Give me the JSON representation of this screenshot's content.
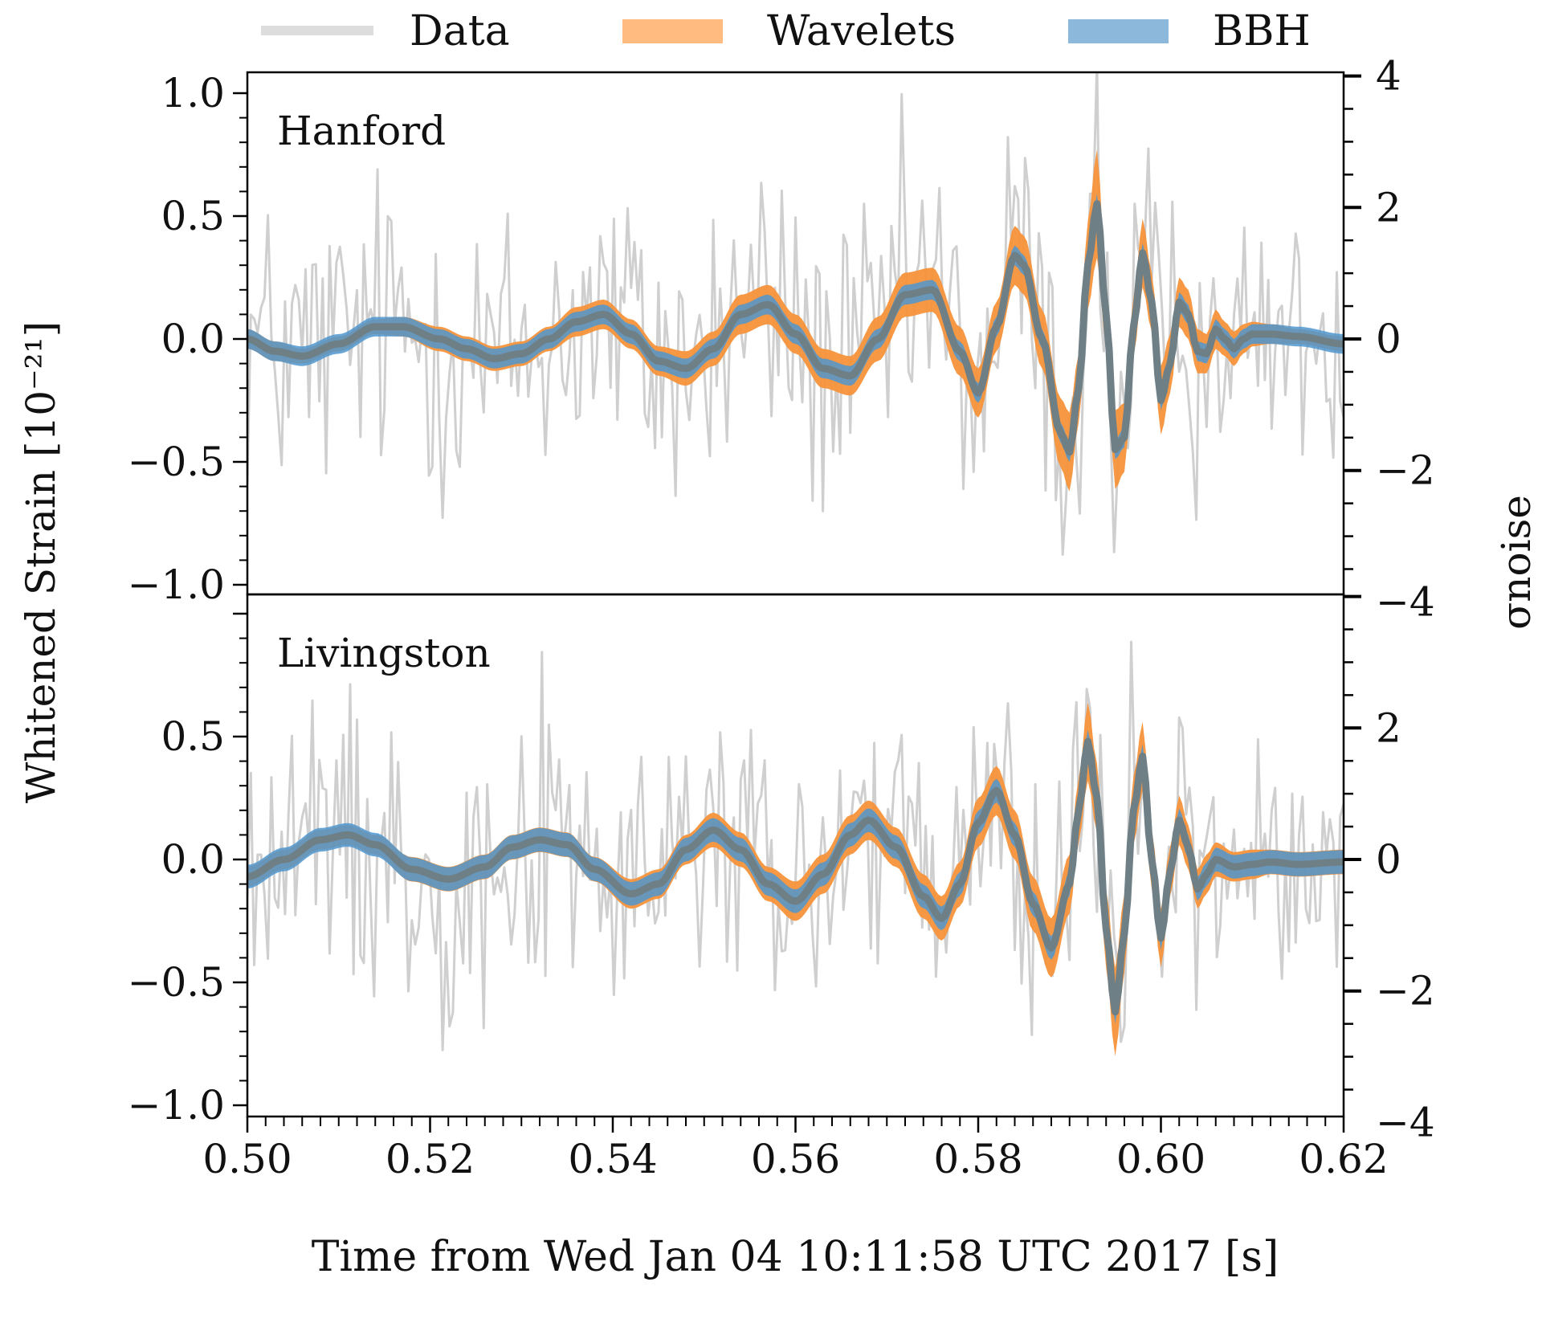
{
  "legend": {
    "items": [
      {
        "label": "Data",
        "color": "#cccccc"
      },
      {
        "label": "Wavelets",
        "color": "#ffbb80"
      },
      {
        "label": "BBH",
        "color": "#8cb8dc"
      }
    ]
  },
  "colors": {
    "data": "#cfcfcf",
    "wavelets": "#f7923a",
    "bbh": "#4f97cf",
    "median": "#6e7f86"
  },
  "chart_data": {
    "type": "line",
    "xlabel": "Time from Wed Jan 04 10:11:58 UTC 2017 [s]",
    "ylabel": "Whitened Strain [10⁻²¹]",
    "y2label": "σnoise",
    "xlim": [
      0.5,
      0.62
    ],
    "x_ticks": [
      "0.50",
      "0.52",
      "0.54",
      "0.56",
      "0.58",
      "0.60",
      "0.62"
    ],
    "series_names": [
      "Data",
      "Wavelets",
      "BBH"
    ],
    "panels": [
      {
        "label": "Hanford",
        "ylim": [
          -1.07,
          1.07
        ],
        "y2lim": [
          -4,
          4
        ],
        "y_ticks": [
          "1.0",
          "0.5",
          "0.0",
          "−0.5",
          "−1.0"
        ],
        "y2_ticks": [
          "4",
          "2",
          "0",
          "−2",
          "−4"
        ],
        "waveform_t": [
          0.5,
          0.503,
          0.506,
          0.51,
          0.514,
          0.517,
          0.521,
          0.524,
          0.527,
          0.53,
          0.533,
          0.536,
          0.539,
          0.542,
          0.545,
          0.548,
          0.551,
          0.554,
          0.557,
          0.56,
          0.563,
          0.566,
          0.569,
          0.572,
          0.575,
          0.578,
          0.58,
          0.582,
          0.584,
          0.585,
          0.587,
          0.589,
          0.59,
          0.591,
          0.592,
          0.593,
          0.594,
          0.595,
          0.596,
          0.597,
          0.598,
          0.599,
          0.6,
          0.601,
          0.602,
          0.603,
          0.604,
          0.605,
          0.606,
          0.607,
          0.608,
          0.609,
          0.61,
          0.612,
          0.615,
          0.62
        ],
        "waveform_median": [
          0.0,
          -0.05,
          -0.07,
          -0.02,
          0.05,
          0.05,
          0.0,
          -0.04,
          -0.08,
          -0.06,
          0.0,
          0.07,
          0.1,
          0.02,
          -0.09,
          -0.12,
          -0.04,
          0.1,
          0.14,
          0.02,
          -0.12,
          -0.15,
          0.0,
          0.18,
          0.2,
          -0.05,
          -0.22,
          0.05,
          0.34,
          0.3,
          0.0,
          -0.38,
          -0.46,
          -0.2,
          0.3,
          0.55,
          0.1,
          -0.45,
          -0.4,
          0.05,
          0.35,
          0.15,
          -0.25,
          -0.1,
          0.15,
          0.1,
          -0.05,
          -0.06,
          0.04,
          0.0,
          -0.04,
          0.0,
          0.02,
          0.02,
          0.01,
          -0.02
        ],
        "bbh_halfwidth": 0.025,
        "wavelet_halfwidth": [
          0.04,
          0.04,
          0.03,
          0.03,
          0.03,
          0.04,
          0.05,
          0.05,
          0.05,
          0.05,
          0.05,
          0.06,
          0.06,
          0.06,
          0.06,
          0.07,
          0.07,
          0.08,
          0.08,
          0.08,
          0.08,
          0.08,
          0.09,
          0.09,
          0.09,
          0.1,
          0.1,
          0.1,
          0.12,
          0.12,
          0.12,
          0.14,
          0.16,
          0.14,
          0.18,
          0.22,
          0.14,
          0.16,
          0.14,
          0.12,
          0.14,
          0.12,
          0.14,
          0.12,
          0.1,
          0.1,
          0.09,
          0.08,
          0.08,
          0.07,
          0.07,
          0.06,
          0.05,
          0.04,
          0.03,
          0.03
        ],
        "data_noise_amplitude": 0.32
      },
      {
        "label": "Livingston",
        "ylim": [
          -1.07,
          1.07
        ],
        "y2lim": [
          -4,
          4
        ],
        "y_ticks": [
          "0.5",
          "0.0",
          "−0.5",
          "−1.0"
        ],
        "y2_ticks": [
          "2",
          "0",
          "−2",
          "−4"
        ],
        "waveform_t": [
          0.5,
          0.504,
          0.508,
          0.511,
          0.514,
          0.518,
          0.522,
          0.526,
          0.529,
          0.532,
          0.535,
          0.538,
          0.542,
          0.545,
          0.548,
          0.551,
          0.554,
          0.557,
          0.56,
          0.563,
          0.566,
          0.568,
          0.571,
          0.574,
          0.576,
          0.578,
          0.58,
          0.582,
          0.584,
          0.586,
          0.588,
          0.59,
          0.591,
          0.592,
          0.593,
          0.594,
          0.595,
          0.596,
          0.597,
          0.598,
          0.599,
          0.6,
          0.601,
          0.602,
          0.603,
          0.604,
          0.605,
          0.606,
          0.608,
          0.61,
          0.612,
          0.615,
          0.62
        ],
        "waveform_median": [
          -0.07,
          0.0,
          0.08,
          0.1,
          0.06,
          -0.04,
          -0.08,
          -0.03,
          0.05,
          0.08,
          0.06,
          -0.04,
          -0.14,
          -0.1,
          0.04,
          0.12,
          0.04,
          -0.1,
          -0.17,
          -0.06,
          0.1,
          0.16,
          0.05,
          -0.15,
          -0.24,
          -0.1,
          0.15,
          0.28,
          0.1,
          -0.18,
          -0.36,
          -0.1,
          0.2,
          0.48,
          0.25,
          -0.28,
          -0.62,
          -0.3,
          0.2,
          0.42,
          0.0,
          -0.32,
          -0.05,
          0.16,
          0.05,
          -0.12,
          -0.06,
          0.0,
          -0.03,
          -0.02,
          -0.01,
          -0.02,
          -0.01
        ],
        "bbh_halfwidth": 0.03,
        "wavelet_halfwidth": [
          0.04,
          0.04,
          0.04,
          0.04,
          0.04,
          0.05,
          0.05,
          0.05,
          0.05,
          0.05,
          0.05,
          0.05,
          0.06,
          0.06,
          0.06,
          0.07,
          0.07,
          0.07,
          0.08,
          0.08,
          0.08,
          0.08,
          0.08,
          0.09,
          0.09,
          0.09,
          0.1,
          0.1,
          0.1,
          0.11,
          0.12,
          0.12,
          0.13,
          0.16,
          0.14,
          0.16,
          0.18,
          0.16,
          0.14,
          0.14,
          0.12,
          0.12,
          0.1,
          0.1,
          0.09,
          0.08,
          0.08,
          0.07,
          0.06,
          0.06,
          0.05,
          0.05,
          0.05
        ],
        "data_noise_amplitude": 0.3
      }
    ]
  }
}
